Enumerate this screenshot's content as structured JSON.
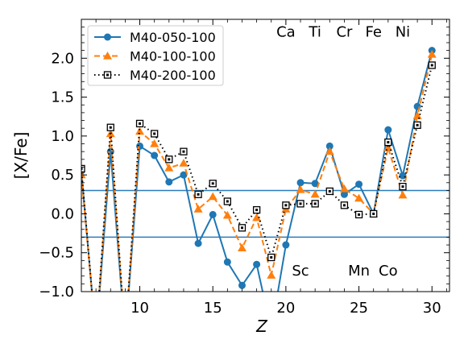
{
  "chart_data": {
    "type": "line",
    "xlabel": "Z",
    "ylabel": "[X/Fe]",
    "xlim": [
      6,
      31.2
    ],
    "ylim": [
      -1.0,
      2.5
    ],
    "xticks": [
      10,
      15,
      20,
      25,
      30
    ],
    "xtick_labels": [
      "10",
      "15",
      "20",
      "25",
      "30"
    ],
    "yticks": [
      -1.0,
      -0.5,
      0.0,
      0.5,
      1.0,
      1.5,
      2.0
    ],
    "ytick_labels": [
      "−1.0",
      "−0.5",
      "0.0",
      "0.5",
      "1.0",
      "1.5",
      "2.0"
    ],
    "hlines": [
      0.3,
      -0.3
    ],
    "hline_color": "#2b7bba",
    "legend_position": "upper-left",
    "element_labels": [
      {
        "text": "Ca",
        "z": 20,
        "y": 2.35
      },
      {
        "text": "Ti",
        "z": 22,
        "y": 2.35
      },
      {
        "text": "Cr",
        "z": 24,
        "y": 2.35
      },
      {
        "text": "Fe",
        "z": 26,
        "y": 2.35
      },
      {
        "text": "Ni",
        "z": 28,
        "y": 2.35
      },
      {
        "text": "Sc",
        "z": 21,
        "y": -0.72
      },
      {
        "text": "Mn",
        "z": 25,
        "y": -0.72
      },
      {
        "text": "Co",
        "z": 27,
        "y": -0.72
      }
    ],
    "series": [
      {
        "name": "M40-050-100",
        "color": "#1f77b4",
        "marker": "circle",
        "line": "solid",
        "x": [
          6,
          7,
          8,
          9,
          10,
          11,
          12,
          13,
          14,
          15,
          16,
          17,
          18,
          19,
          20,
          21,
          22,
          23,
          24,
          25,
          26,
          27,
          28,
          29,
          30
        ],
        "y": [
          0.55,
          -1.6,
          0.8,
          -1.6,
          0.87,
          0.75,
          0.41,
          0.5,
          -0.38,
          -0.01,
          -0.62,
          -0.92,
          -0.65,
          -1.5,
          -0.4,
          0.4,
          0.39,
          0.87,
          0.25,
          0.38,
          0.0,
          1.08,
          0.49,
          1.38,
          2.1
        ]
      },
      {
        "name": "M40-100-100",
        "color": "#ff7f0e",
        "marker": "triangle",
        "line": "dashed",
        "x": [
          6,
          7,
          8,
          9,
          10,
          11,
          12,
          13,
          14,
          15,
          16,
          17,
          18,
          19,
          20,
          21,
          22,
          23,
          24,
          25,
          26,
          27,
          28,
          29,
          30
        ],
        "y": [
          0.5,
          -1.6,
          1.03,
          -1.6,
          1.06,
          0.9,
          0.59,
          0.65,
          0.06,
          0.22,
          -0.02,
          -0.44,
          -0.05,
          -0.79,
          0.06,
          0.31,
          0.25,
          0.8,
          0.32,
          0.2,
          0.0,
          0.85,
          0.24,
          1.26,
          2.05
        ]
      },
      {
        "name": "M40-200-100",
        "color": "#000000",
        "marker": "square",
        "line": "dotted",
        "x": [
          6,
          7,
          8,
          9,
          10,
          11,
          12,
          13,
          14,
          15,
          16,
          17,
          18,
          19,
          20,
          21,
          22,
          23,
          24,
          25,
          26,
          27,
          28,
          29,
          30
        ],
        "y": [
          0.58,
          -1.6,
          1.11,
          -1.6,
          1.16,
          1.03,
          0.7,
          0.8,
          0.25,
          0.39,
          0.16,
          -0.18,
          0.05,
          -0.56,
          0.11,
          0.13,
          0.13,
          0.29,
          0.11,
          -0.01,
          0.0,
          0.92,
          0.35,
          1.14,
          1.91
        ]
      }
    ]
  }
}
